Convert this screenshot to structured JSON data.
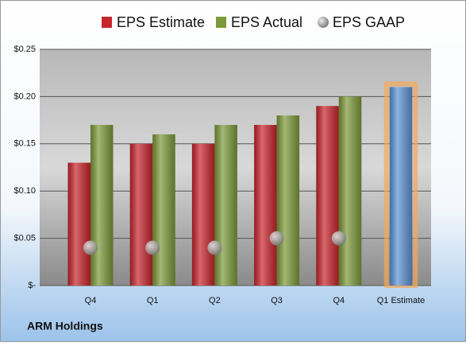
{
  "chart_data": {
    "type": "bar",
    "title": "ARM Holdings",
    "categories": [
      "Q4",
      "Q1",
      "Q2",
      "Q3",
      "Q4",
      "Q1 Estimate"
    ],
    "series": [
      {
        "name": "EPS Estimate",
        "color": "#c8262c",
        "colors": [
          "#c8262c",
          "#c8262c",
          "#c8262c",
          "#c8262c",
          "#c8262c",
          "#5f93d4"
        ],
        "values": [
          0.13,
          0.15,
          0.15,
          0.17,
          0.19,
          0.21
        ]
      },
      {
        "name": "EPS Actual",
        "color": "#7d9a3a",
        "values": [
          0.17,
          0.16,
          0.17,
          0.18,
          0.2,
          null
        ]
      },
      {
        "name": "EPS GAAP",
        "color": "#9a9a9a",
        "marker": "circle",
        "values": [
          0.04,
          0.04,
          0.04,
          0.05,
          0.05,
          null
        ]
      }
    ],
    "ylim": [
      0,
      0.25
    ],
    "yticks": [
      {
        "value": 0,
        "label": "$-"
      },
      {
        "value": 0.05,
        "label": "$0.05"
      },
      {
        "value": 0.1,
        "label": "$0.10"
      },
      {
        "value": 0.15,
        "label": "$0.15"
      },
      {
        "value": 0.2,
        "label": "$0.20"
      },
      {
        "value": 0.25,
        "label": "$0.25"
      }
    ],
    "grid": true,
    "legend": "top"
  }
}
